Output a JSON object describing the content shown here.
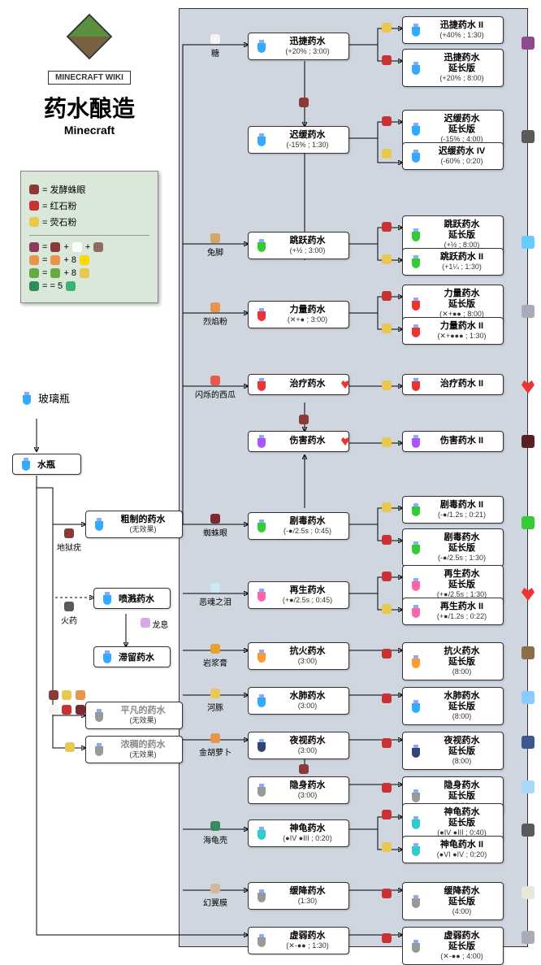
{
  "header": {
    "wiki": "MINECRAFT WIKI",
    "title": "药水酿造",
    "subtitle": "Minecraft"
  },
  "legend": {
    "items": [
      {
        "color": "#8b3a3a",
        "label": "发酵蛛眼"
      },
      {
        "color": "#c83232",
        "label": "红石粉"
      },
      {
        "color": "#e8c850",
        "label": "荧石粉"
      }
    ],
    "recipes": [
      {
        "lhs": "#8b3a5a",
        "rhs": [
          "#8b3a3a",
          "+",
          "#fff",
          "+",
          "#8d6e63"
        ]
      },
      {
        "lhs": "#e8944a",
        "rhs": [
          "#e8944a",
          "+ 8",
          "#ffd700"
        ]
      },
      {
        "lhs": "#66aa44",
        "rhs": [
          "#66aa44",
          "+ 8",
          "#e8c850"
        ]
      },
      {
        "lhs": "#2e8b57",
        "rhs": [
          "= 5",
          "#3cb371"
        ]
      }
    ]
  },
  "start": {
    "bottle": "玻璃瓶",
    "water": "水瓶"
  },
  "leftBranch": {
    "awkward": {
      "title": "粗制的药水",
      "sub": "(无效果)"
    },
    "awkward_ing": "地狱疣",
    "splash": "喷溅药水",
    "splash_ing": "火药",
    "lingering": "滞留药水",
    "lingering_ing": "龙息",
    "mundane": {
      "title": "平凡的药水",
      "sub": "(无效果)"
    },
    "thick": {
      "title": "浓稠的药水",
      "sub": "(无效果)"
    }
  },
  "ingredients": {
    "sugar": "糖",
    "rabbit": "兔脚",
    "blaze": "烈焰粉",
    "melon": "闪烁的西瓜",
    "spider": "蜘蛛眼",
    "tear": "恶魂之泪",
    "magma": "岩浆膏",
    "puffer": "河豚",
    "carrot": "金胡萝卜",
    "scute": "海龟壳",
    "membrane": "幻翼膜"
  },
  "potions": {
    "swiftness": {
      "name": "迅捷药水",
      "sub": "(+20% ; 3:00)",
      "c": "p-blue"
    },
    "swiftness2": {
      "name": "迅捷药水 II",
      "sub": "(+40% ; 1:30)",
      "c": "p-blue"
    },
    "swiftnessE": {
      "name": "迅捷药水\n延长版",
      "sub": "(+20% ; 8:00)",
      "c": "p-blue"
    },
    "slowness": {
      "name": "迟缓药水",
      "sub": "(-15% ; 1:30)",
      "c": "p-blue"
    },
    "slownessE": {
      "name": "迟缓药水\n延长版",
      "sub": "(-15% ; 4:00)",
      "c": "p-blue"
    },
    "slowness4": {
      "name": "迟缓药水 IV",
      "sub": "(-60% ; 0:20)",
      "c": "p-blue"
    },
    "leaping": {
      "name": "跳跃药水",
      "sub": "(+½ ; 3:00)",
      "c": "p-green"
    },
    "leapingE": {
      "name": "跳跃药水\n延长版",
      "sub": "(+½ ; 8:00)",
      "c": "p-green"
    },
    "leaping2": {
      "name": "跳跃药水 II",
      "sub": "(+1¼ ; 1:30)",
      "c": "p-green"
    },
    "strength": {
      "name": "力量药水",
      "sub": "(✕+● ; 3:00)",
      "c": "p-red"
    },
    "strengthE": {
      "name": "力量药水\n延长版",
      "sub": "(✕+●● ; 8:00)",
      "c": "p-red"
    },
    "strength2": {
      "name": "力量药水 II",
      "sub": "(✕+●●● ; 1:30)",
      "c": "p-red"
    },
    "healing": {
      "name": "治疗药水",
      "sub": "",
      "c": "p-red"
    },
    "healing2": {
      "name": "治疗药水 II",
      "sub": "",
      "c": "p-red"
    },
    "harming": {
      "name": "伤害药水",
      "sub": "",
      "c": "p-purple"
    },
    "harming2": {
      "name": "伤害药水 II",
      "sub": "",
      "c": "p-purple"
    },
    "poison": {
      "name": "剧毒药水",
      "sub": "(-●/2.5s ; 0:45)",
      "c": "p-green"
    },
    "poison2": {
      "name": "剧毒药水 II",
      "sub": "(-●/1.2s ; 0:21)",
      "c": "p-green"
    },
    "poisonE": {
      "name": "剧毒药水\n延长版",
      "sub": "(-●/2.5s ; 1:30)",
      "c": "p-green"
    },
    "regen": {
      "name": "再生药水",
      "sub": "(+●/2.5s ; 0:45)",
      "c": "p-pink"
    },
    "regenE": {
      "name": "再生药水\n延长版",
      "sub": "(+●/2.5s ; 1:30)",
      "c": "p-pink"
    },
    "regen2": {
      "name": "再生药水 II",
      "sub": "(+●/1.2s ; 0:22)",
      "c": "p-pink"
    },
    "fire": {
      "name": "抗火药水",
      "sub": "(3:00)",
      "c": "p-orange"
    },
    "fireE": {
      "name": "抗火药水\n延长版",
      "sub": "(8:00)",
      "c": "p-orange"
    },
    "water": {
      "name": "水肺药水",
      "sub": "(3:00)",
      "c": "p-blue"
    },
    "waterE": {
      "name": "水肺药水\n延长版",
      "sub": "(8:00)",
      "c": "p-blue"
    },
    "night": {
      "name": "夜视药水",
      "sub": "(3:00)",
      "c": "p-dark"
    },
    "nightE": {
      "name": "夜视药水\n延长版",
      "sub": "(8:00)",
      "c": "p-dark"
    },
    "invis": {
      "name": "隐身药水",
      "sub": "(3:00)",
      "c": "p-gray"
    },
    "invisE": {
      "name": "隐身药水\n延长版",
      "sub": "(8:00)",
      "c": "p-gray"
    },
    "turtle": {
      "name": "神龟药水",
      "sub": "(●IV ●III ; 0:20)",
      "c": "p-cyan"
    },
    "turtleE": {
      "name": "神龟药水\n延长版",
      "sub": "(●IV ●III ; 0:40)",
      "c": "p-cyan"
    },
    "turtle2": {
      "name": "神龟药水 II",
      "sub": "(●VI ●IV ; 0:20)",
      "c": "p-cyan"
    },
    "slowfall": {
      "name": "缓降药水",
      "sub": "(1:30)",
      "c": "p-gray"
    },
    "slowfallE": {
      "name": "缓降药水\n延长版",
      "sub": "(4:00)",
      "c": "p-gray"
    },
    "weakness": {
      "name": "虚弱药水",
      "sub": "(✕-●● ; 1:30)",
      "c": "p-gray"
    },
    "weaknessE": {
      "name": "虚弱药水\n延长版",
      "sub": "(✕-●● ; 4:00)",
      "c": "p-gray"
    }
  },
  "colors": {
    "redstone": "#c83232",
    "glowstone": "#e8c850",
    "eye": "#8b3a3a",
    "sugar": "#f5f5f5",
    "rabbit": "#d4a864",
    "blaze": "#e8944a",
    "melon": "#e85a4a",
    "spider": "#7a2832",
    "tear": "#cde8f5",
    "magma": "#e8a030",
    "puffer": "#e8c85a",
    "carrot": "#e8944a",
    "scute": "#3a8b5a",
    "membrane": "#d4b89a",
    "gunpowder": "#5a5a5a",
    "wart": "#8b3a3a"
  }
}
